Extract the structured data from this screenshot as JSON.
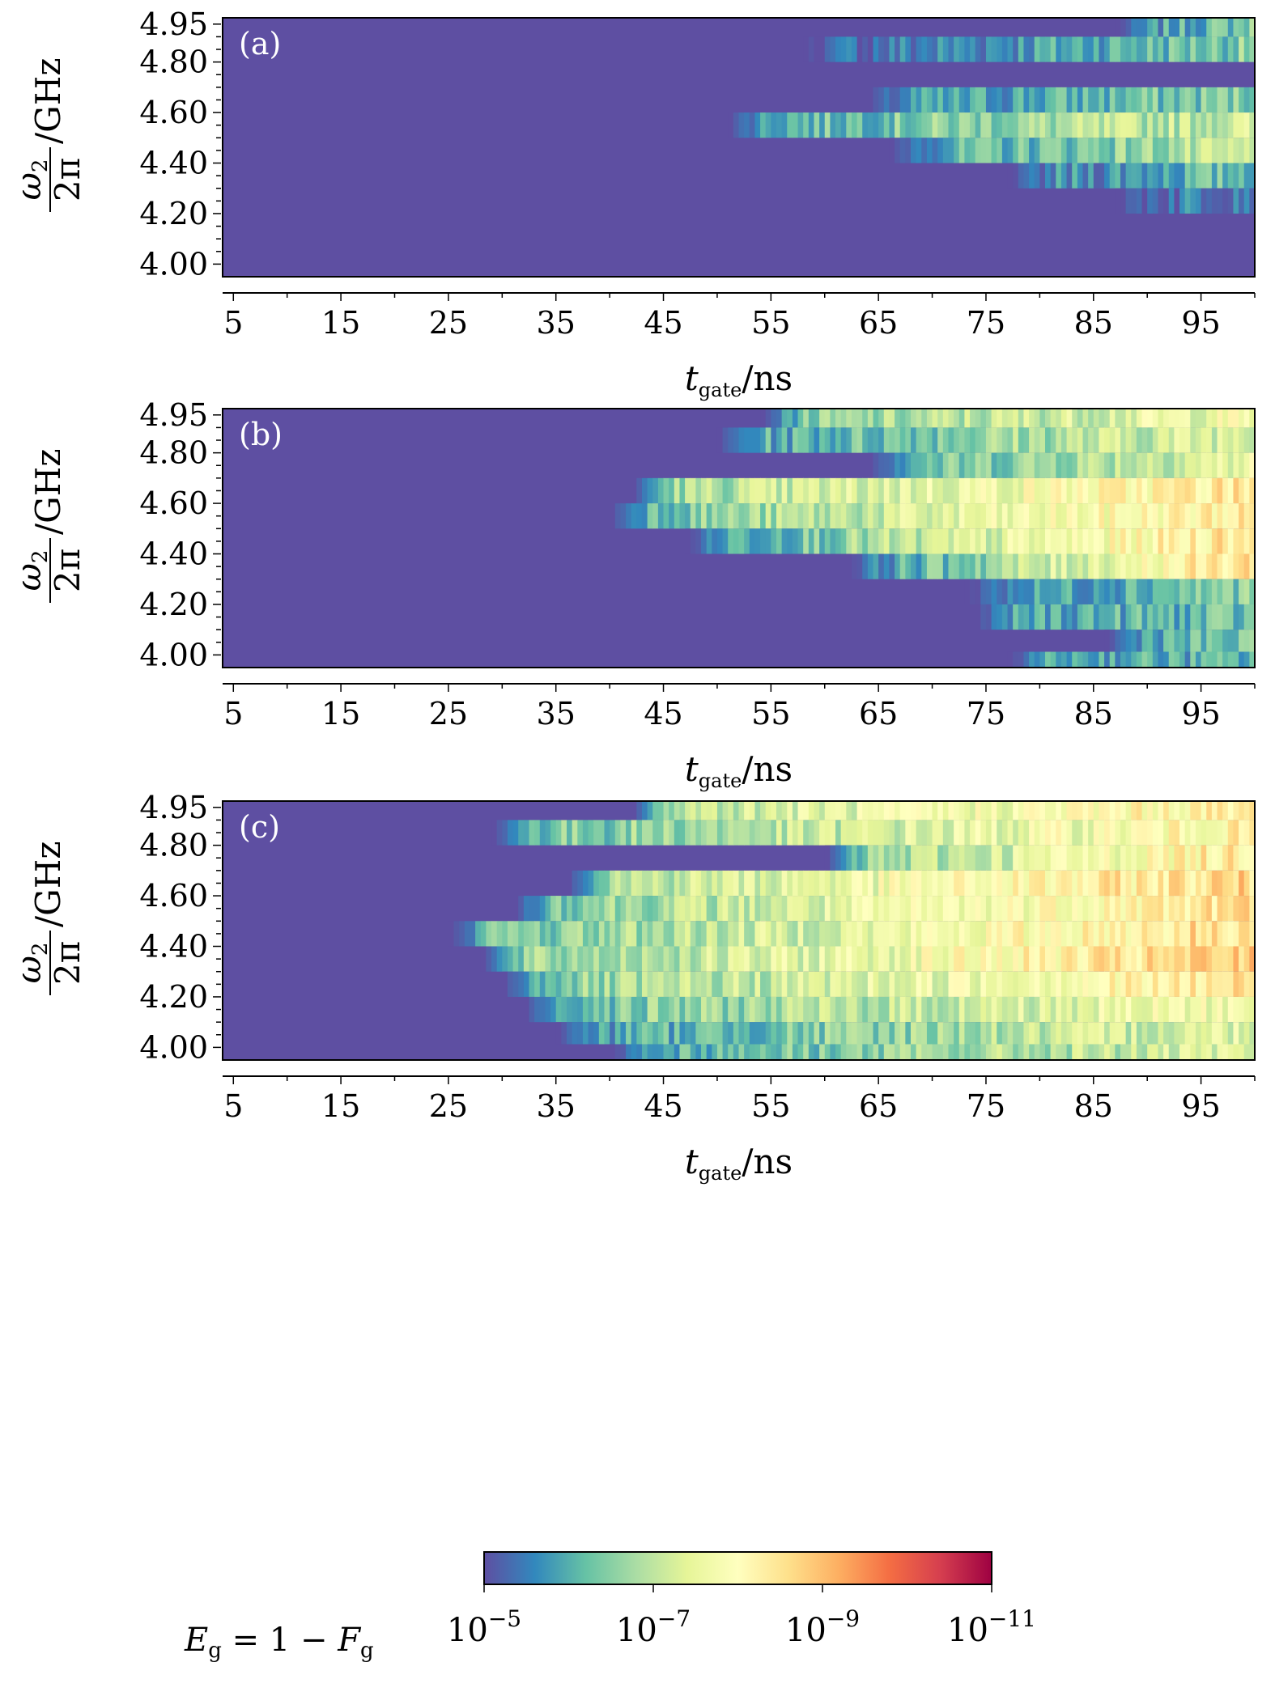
{
  "chart_data": [
    {
      "panel": "(a)",
      "type": "heatmap",
      "xlabel": {
        "main": "t",
        "sub": "gate",
        "unit": "/ns"
      },
      "ylabel": {
        "num": "ω",
        "num_sub": "2",
        "den": "2π",
        "unit": "/GHz"
      },
      "x_range": [
        4,
        100
      ],
      "y_range": [
        3.95,
        4.975
      ],
      "x_ticks": [
        5,
        15,
        25,
        35,
        45,
        55,
        65,
        75,
        85,
        95
      ],
      "y_ticks": [
        4.0,
        4.2,
        4.4,
        4.6,
        4.8,
        4.95
      ],
      "y_tick_labels": [
        "4.00",
        "4.20",
        "4.40",
        "4.60",
        "4.80",
        "4.95"
      ],
      "rows": [
        {
          "y": 4.95,
          "onset": 87,
          "level": 5.5,
          "end_level": 6.5
        },
        {
          "y": 4.85,
          "onset": 58,
          "level": 5.2,
          "end_level": 6.5
        },
        {
          "y": 4.75,
          "onset": null,
          "level": 5,
          "end_level": 5
        },
        {
          "y": 4.65,
          "onset": 64,
          "level": 5.6,
          "end_level": 6.5
        },
        {
          "y": 4.55,
          "onset": 51,
          "level": 6.0,
          "end_level": 7.2
        },
        {
          "y": 4.45,
          "onset": 66,
          "level": 5.8,
          "end_level": 7.0
        },
        {
          "y": 4.35,
          "onset": 77,
          "level": 5.4,
          "end_level": 6.3
        },
        {
          "y": 4.25,
          "onset": 87,
          "level": 5.3,
          "end_level": 5.8
        },
        {
          "y": 4.15,
          "onset": null,
          "level": 5,
          "end_level": 5
        },
        {
          "y": 4.05,
          "onset": null,
          "level": 5,
          "end_level": 5
        },
        {
          "y": 3.975,
          "onset": null,
          "level": 5,
          "end_level": 5
        }
      ]
    },
    {
      "panel": "(b)",
      "type": "heatmap",
      "xlabel": {
        "main": "t",
        "sub": "gate",
        "unit": "/ns"
      },
      "ylabel": {
        "num": "ω",
        "num_sub": "2",
        "den": "2π",
        "unit": "/GHz"
      },
      "x_range": [
        4,
        100
      ],
      "y_range": [
        3.95,
        4.975
      ],
      "x_ticks": [
        5,
        15,
        25,
        35,
        45,
        55,
        65,
        75,
        85,
        95
      ],
      "y_ticks": [
        4.0,
        4.2,
        4.4,
        4.6,
        4.8,
        4.95
      ],
      "y_tick_labels": [
        "4.00",
        "4.20",
        "4.40",
        "4.60",
        "4.80",
        "4.95"
      ],
      "rows": [
        {
          "y": 4.95,
          "onset": 54,
          "level": 6.3,
          "end_level": 7.8
        },
        {
          "y": 4.85,
          "onset": 50,
          "level": 5.8,
          "end_level": 7.5
        },
        {
          "y": 4.75,
          "onset": 64,
          "level": 6.0,
          "end_level": 7.6
        },
        {
          "y": 4.65,
          "onset": 42,
          "level": 6.6,
          "end_level": 8.5
        },
        {
          "y": 4.55,
          "onset": 40,
          "level": 6.2,
          "end_level": 8.4
        },
        {
          "y": 4.45,
          "onset": 47,
          "level": 5.8,
          "end_level": 8.6
        },
        {
          "y": 4.35,
          "onset": 62,
          "level": 5.6,
          "end_level": 8.7
        },
        {
          "y": 4.25,
          "onset": 73,
          "level": 5.5,
          "end_level": 6.6
        },
        {
          "y": 4.15,
          "onset": 74,
          "level": 5.9,
          "end_level": 6.2
        },
        {
          "y": 4.05,
          "onset": 86,
          "level": 6.0,
          "end_level": 6.2
        },
        {
          "y": 3.975,
          "onset": 77,
          "level": 6.0,
          "end_level": 6.0
        }
      ]
    },
    {
      "panel": "(c)",
      "type": "heatmap",
      "xlabel": {
        "main": "t",
        "sub": "gate",
        "unit": "/ns"
      },
      "ylabel": {
        "num": "ω",
        "num_sub": "2",
        "den": "2π",
        "unit": "/GHz"
      },
      "x_range": [
        4,
        100
      ],
      "y_range": [
        3.95,
        4.975
      ],
      "x_ticks": [
        5,
        15,
        25,
        35,
        45,
        55,
        65,
        75,
        85,
        95
      ],
      "y_ticks": [
        4.0,
        4.2,
        4.4,
        4.6,
        4.8,
        4.95
      ],
      "y_tick_labels": [
        "4.00",
        "4.20",
        "4.40",
        "4.60",
        "4.80",
        "4.95"
      ],
      "rows": [
        {
          "y": 4.95,
          "onset": 42,
          "level": 7.0,
          "end_level": 8.3
        },
        {
          "y": 4.85,
          "onset": 29,
          "level": 6.2,
          "end_level": 8.2
        },
        {
          "y": 4.75,
          "onset": 60,
          "level": 6.4,
          "end_level": 8.5
        },
        {
          "y": 4.65,
          "onset": 36,
          "level": 6.8,
          "end_level": 8.7
        },
        {
          "y": 4.55,
          "onset": 31,
          "level": 6.4,
          "end_level": 8.6
        },
        {
          "y": 4.45,
          "onset": 25,
          "level": 6.2,
          "end_level": 8.7
        },
        {
          "y": 4.35,
          "onset": 28,
          "level": 6.4,
          "end_level": 8.8
        },
        {
          "y": 4.25,
          "onset": 30,
          "level": 6.3,
          "end_level": 8.5
        },
        {
          "y": 4.15,
          "onset": 32,
          "level": 6.2,
          "end_level": 7.8
        },
        {
          "y": 4.05,
          "onset": 35,
          "level": 5.8,
          "end_level": 7.5
        },
        {
          "y": 3.975,
          "onset": 40,
          "level": 6.0,
          "end_level": 7.3
        }
      ]
    }
  ],
  "colorbar": {
    "label": "E_g = 1 − F_g",
    "label_parts": {
      "E": "E",
      "E_sub": "g",
      "eq": " = 1 − ",
      "F": "F",
      "F_sub": "g"
    },
    "colormap": "Spectral",
    "range_exponent": [
      -5,
      -11
    ],
    "ticks": [
      {
        "base": "10",
        "exp": "−5"
      },
      {
        "base": "10",
        "exp": "−7"
      },
      {
        "base": "10",
        "exp": "−9"
      },
      {
        "base": "10",
        "exp": "−11"
      }
    ],
    "stops": [
      "#5e4fa2",
      "#3288bd",
      "#66c2a5",
      "#abdda4",
      "#e6f598",
      "#ffffbf",
      "#fee08b",
      "#fdae61",
      "#f46d43",
      "#d53e4f",
      "#9e0142"
    ]
  }
}
